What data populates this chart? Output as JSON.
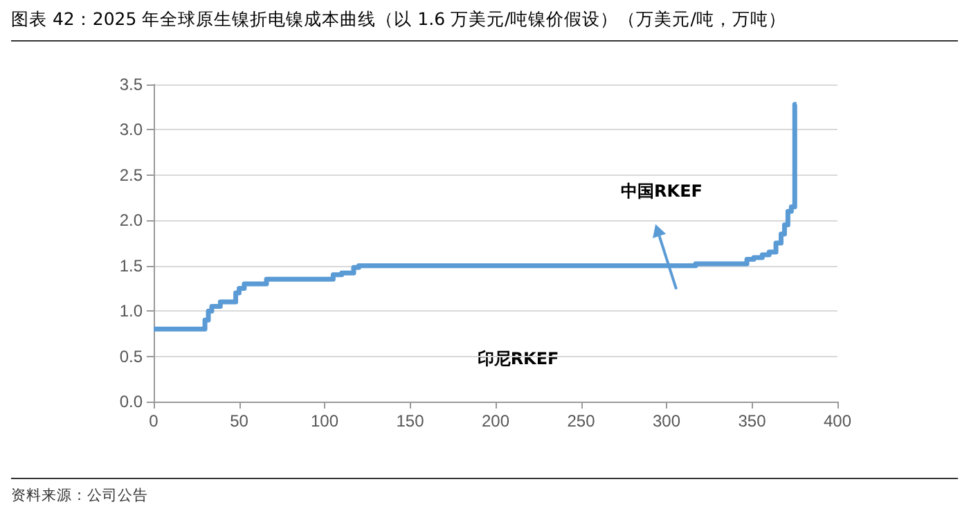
{
  "chart_data": {
    "type": "step",
    "title": "图表 42：2025 年全球原生镍折电镍成本曲线（以 1.6 万美元/吨镍价假设）（万美元/吨，万吨）",
    "x": [
      0,
      19,
      30,
      32,
      34,
      39,
      48,
      50,
      53,
      66,
      105,
      110,
      117,
      120,
      292,
      317,
      347,
      351,
      356,
      360,
      364,
      367,
      369,
      371,
      373,
      375,
      376
    ],
    "values": [
      0.8,
      0.8,
      0.9,
      1.0,
      1.05,
      1.1,
      1.2,
      1.25,
      1.3,
      1.35,
      1.4,
      1.42,
      1.48,
      1.5,
      1.5,
      1.52,
      1.57,
      1.59,
      1.62,
      1.65,
      1.75,
      1.85,
      1.95,
      2.1,
      2.15,
      3.28,
      3.28
    ],
    "color": "#5b9bd5",
    "xlim": [
      0,
      400
    ],
    "xticks": [
      0,
      50,
      100,
      150,
      200,
      250,
      300,
      350,
      400
    ],
    "ylim": [
      0,
      3.5
    ],
    "yticks": [
      {
        "value": 0,
        "label": "0.0"
      },
      0.5,
      {
        "value": 1,
        "label": "1.0"
      },
      1.5,
      {
        "value": 2,
        "label": "2.0"
      },
      2.5,
      {
        "value": 3,
        "label": "3.0"
      },
      3.5
    ],
    "grid": "y",
    "marker": "none",
    "line_style": "solid",
    "annotations": [
      "中国RKEF",
      "印尼RKEF",
      "资料来源：公司公告"
    ]
  }
}
